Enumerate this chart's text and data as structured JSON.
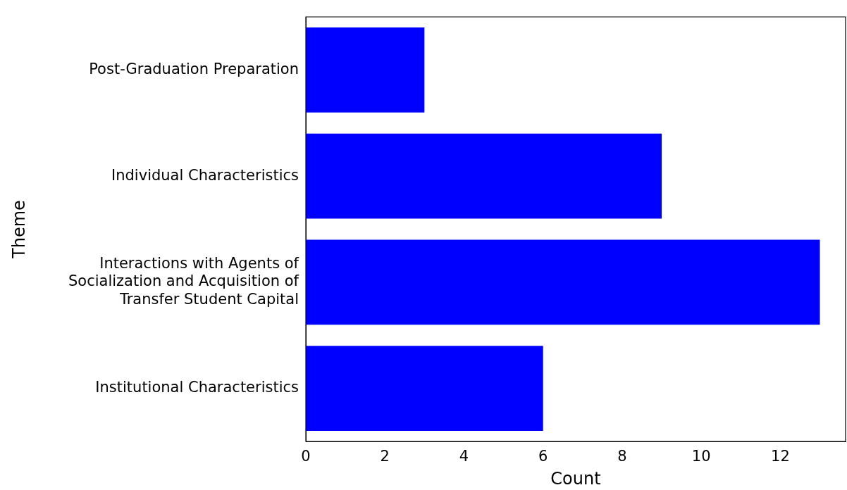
{
  "chart_data": {
    "type": "bar",
    "orientation": "horizontal",
    "xlabel": "Count",
    "ylabel": "Theme",
    "categories": [
      "Post-Graduation Preparation",
      "Individual Characteristics",
      "Interactions with Agents of\nSocialization and Acquisition of\nTransfer Student Capital",
      "Institutional Characteristics"
    ],
    "values": [
      3,
      9,
      13,
      6
    ],
    "color": "#0000ff",
    "xlim": [
      0,
      13.65
    ],
    "xticks": [
      0,
      2,
      4,
      6,
      8,
      10,
      12
    ],
    "grid": false,
    "legend": false
  }
}
